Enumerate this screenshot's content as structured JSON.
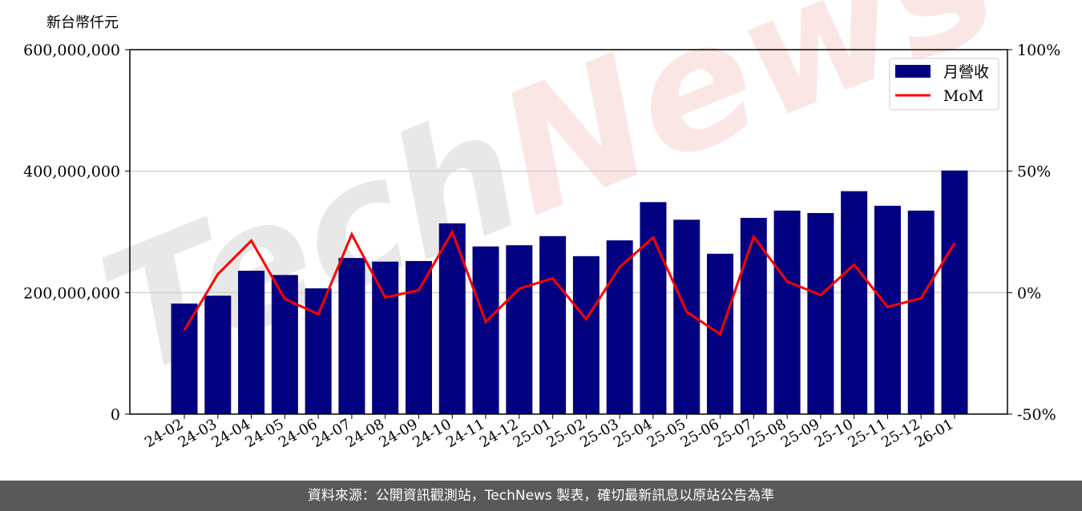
{
  "chart_data": {
    "type": "bar+line",
    "unit_label": "新台幣仟元",
    "categories": [
      "24-02",
      "24-03",
      "24-04",
      "24-05",
      "24-06",
      "24-07",
      "24-08",
      "24-09",
      "24-10",
      "24-11",
      "24-12",
      "25-01",
      "25-02",
      "25-03",
      "25-04",
      "25-05",
      "25-06",
      "25-07",
      "25-08",
      "25-09",
      "25-10",
      "25-11",
      "25-12",
      "26-01"
    ],
    "series": [
      {
        "name": "月營收",
        "type": "bar",
        "axis": "left",
        "color": "#000080",
        "values": [
          182000000,
          195000000,
          236000000,
          229000000,
          207000000,
          257000000,
          251000000,
          252000000,
          314000000,
          276000000,
          278000000,
          293000000,
          260000000,
          286000000,
          349000000,
          320000000,
          264000000,
          323000000,
          335000000,
          331000000,
          367000000,
          343000000,
          335000000,
          401000000
        ]
      },
      {
        "name": "MoM",
        "type": "line",
        "axis": "right",
        "color": "#ff0000",
        "values": [
          -15.5,
          7.6,
          21.4,
          -2.6,
          -8.9,
          24.0,
          -2.0,
          1.0,
          25.0,
          -12.0,
          1.6,
          5.9,
          -10.9,
          10.5,
          22.7,
          -7.9,
          -17.1,
          23.0,
          4.6,
          -1.0,
          11.5,
          -5.9,
          -2.3,
          20.4
        ]
      }
    ],
    "left_ylim": [
      0,
      600000000
    ],
    "left_ticks": [
      "0",
      "200,000,000",
      "400,000,000",
      "600,000,000"
    ],
    "right_ylim": [
      -50,
      100
    ],
    "right_ticks": [
      "-50%",
      "0%",
      "50%",
      "100%"
    ],
    "grid": true,
    "legend": "top-right"
  },
  "watermark": "TechNews",
  "footer": "資料來源：公開資訊觀測站，TechNews 製表，確切最新訊息以原站公告為準"
}
